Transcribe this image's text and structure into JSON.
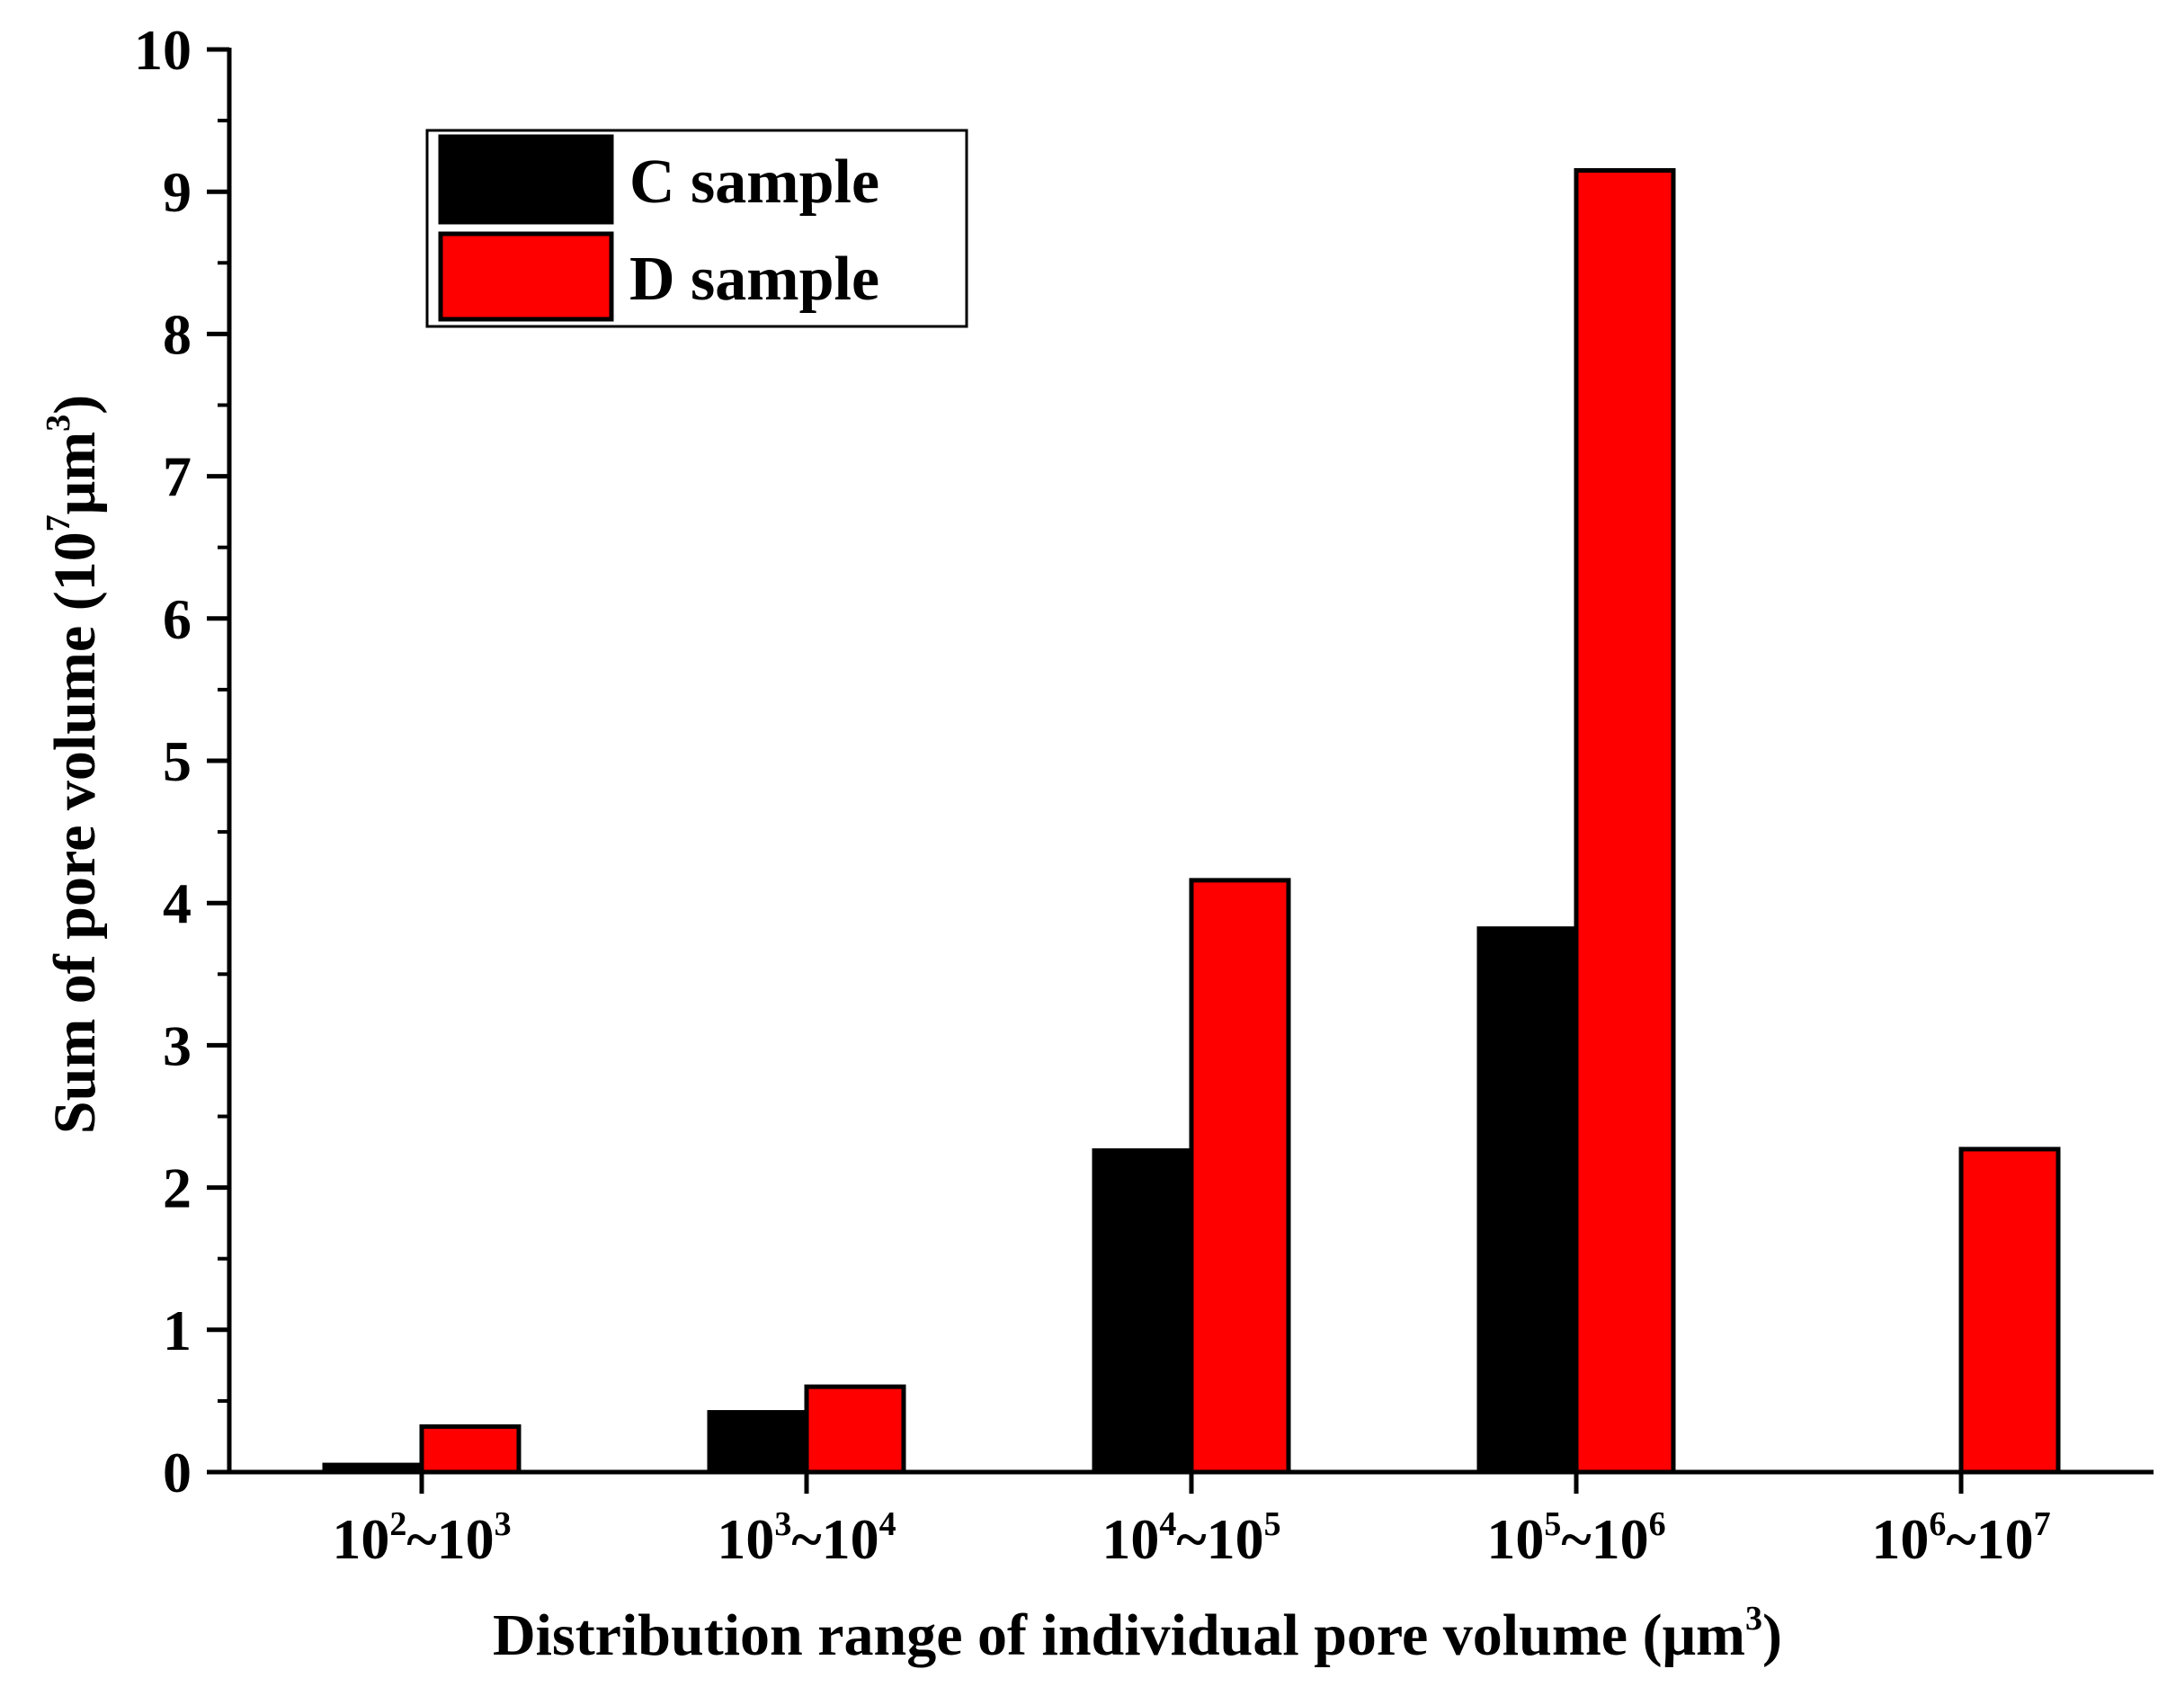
{
  "chart_data": {
    "type": "bar",
    "title": "",
    "categories": [
      {
        "base1": "10",
        "exp1": "2",
        "sep": "~",
        "base2": "10",
        "exp2": "3"
      },
      {
        "base1": "10",
        "exp1": "3",
        "sep": "~",
        "base2": "10",
        "exp2": "4"
      },
      {
        "base1": "10",
        "exp1": "4",
        "sep": "~",
        "base2": "10",
        "exp2": "5"
      },
      {
        "base1": "10",
        "exp1": "5",
        "sep": "~",
        "base2": "10",
        "exp2": "6"
      },
      {
        "base1": "10",
        "exp1": "6",
        "sep": "~",
        "base2": "10",
        "exp2": "7"
      }
    ],
    "series": [
      {
        "name": "C sample",
        "color": "#000000",
        "values": [
          0.05,
          0.42,
          2.26,
          3.82,
          0
        ]
      },
      {
        "name": "D sample",
        "color": "#ff0000",
        "values": [
          0.32,
          0.6,
          4.16,
          9.15,
          2.27
        ]
      }
    ],
    "xlabel": {
      "main": "Distribution range of individual pore volume (μm",
      "sup": "3",
      "close": ")"
    },
    "ylabel": {
      "main": "Sum of pore volume (10",
      "sup1": "7",
      "unit": "μm",
      "sup2": "3",
      "close": ")"
    },
    "ylim": [
      0,
      10
    ],
    "yticks": [
      "0",
      "1",
      "2",
      "3",
      "4",
      "5",
      "6",
      "7",
      "8",
      "9",
      "10"
    ],
    "legend_position": "top-left",
    "grid": false
  }
}
